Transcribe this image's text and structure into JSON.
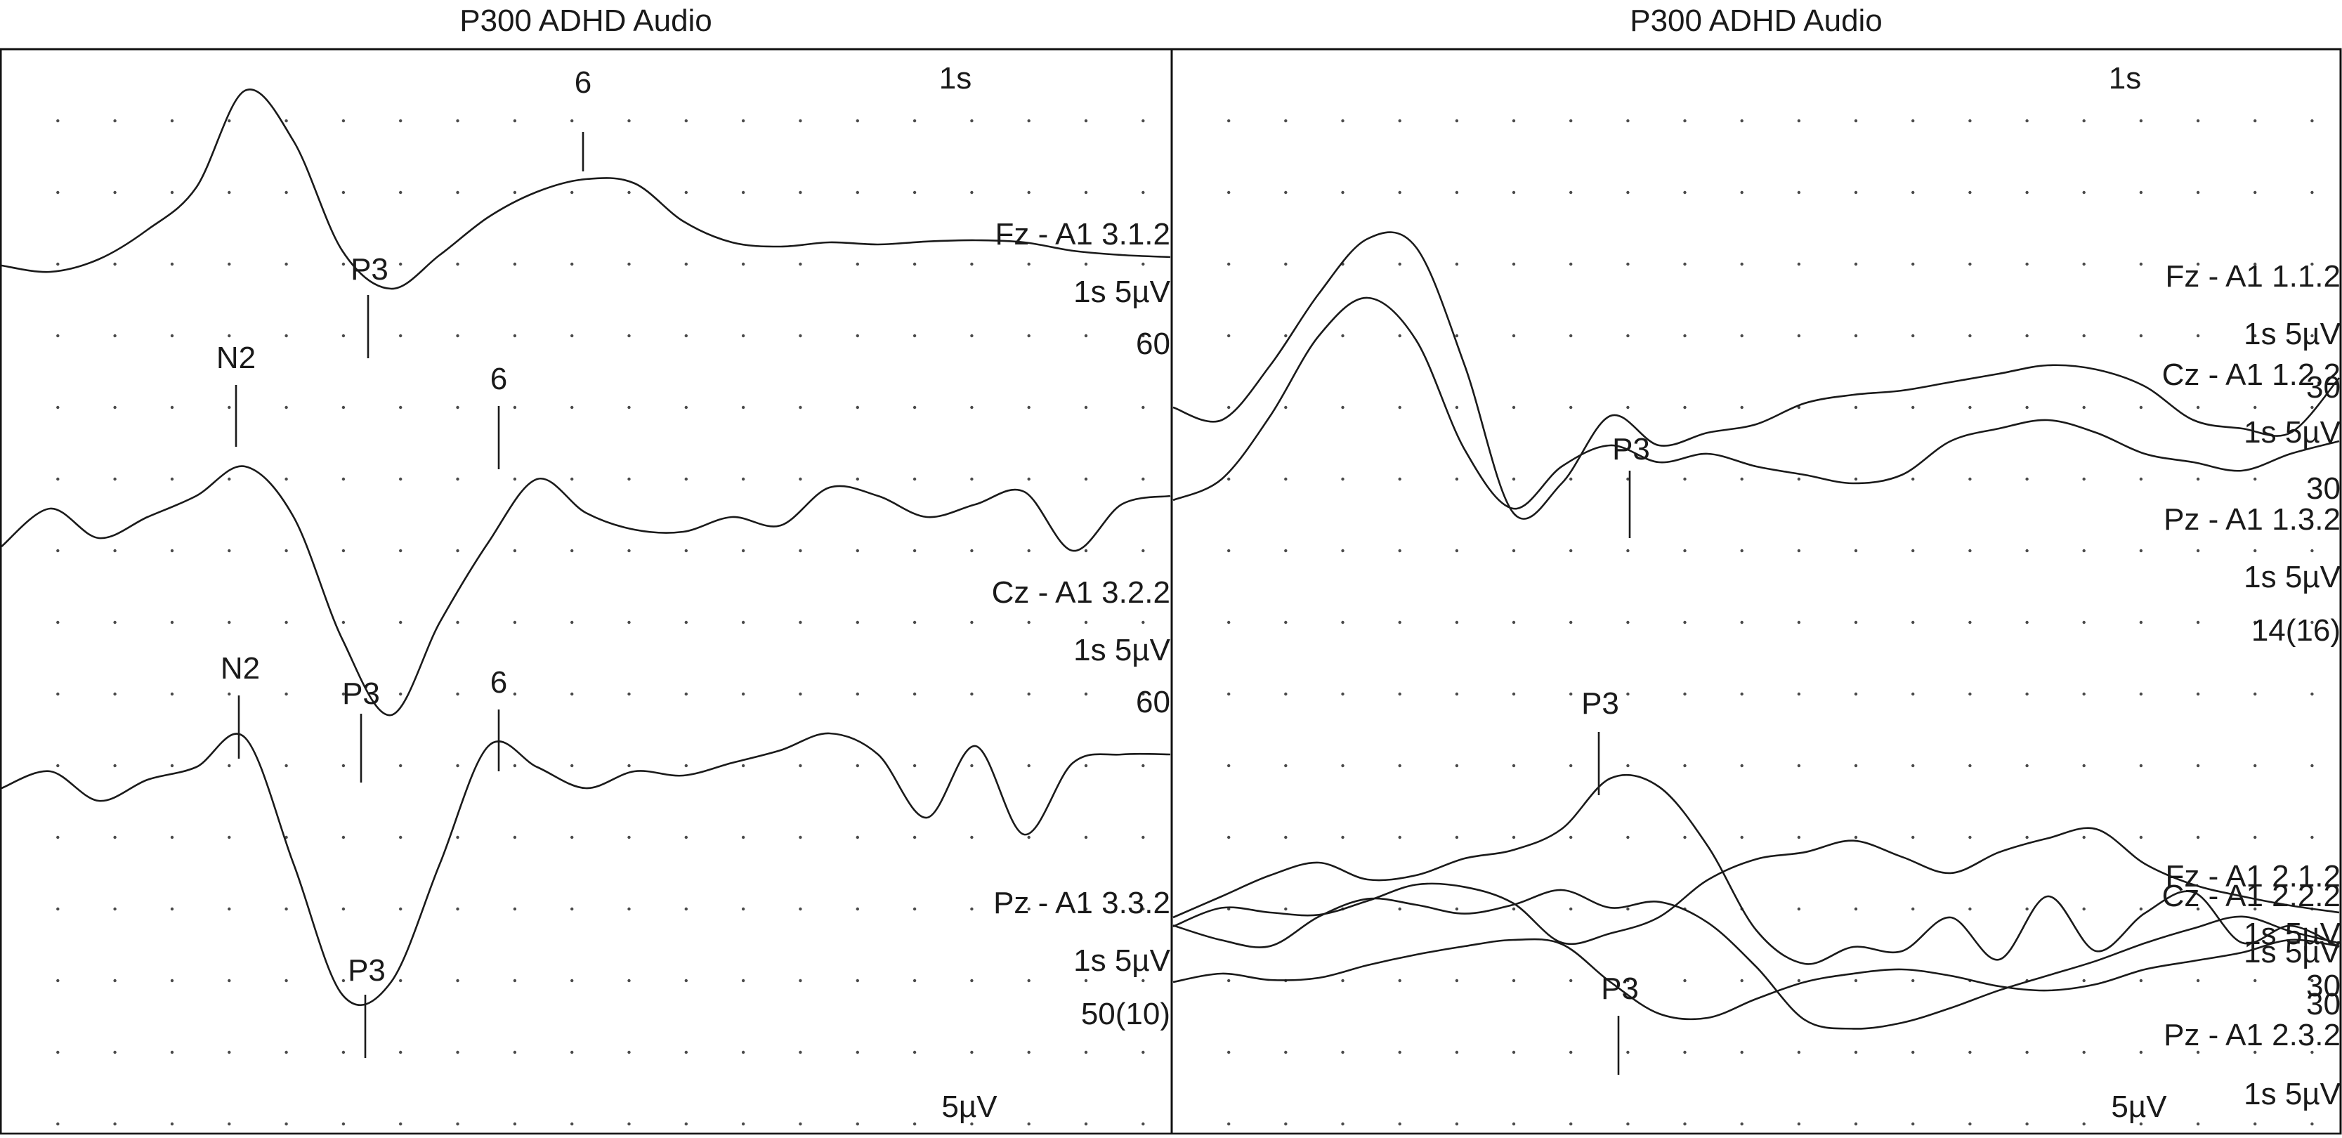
{
  "chart_data": [
    {
      "type": "line",
      "title": "P300 ADHD Audio",
      "time_scale": "1s",
      "amplitude_scale": "5µV",
      "grid": true,
      "series": [
        {
          "name": "Fz - A1  3.1.2",
          "scale": "1s 5µV",
          "count": "60",
          "peaks": [
            {
              "label": "P3"
            },
            {
              "label": "6"
            }
          ],
          "values": [
            -0.55,
            -0.7,
            -0.4,
            0.3,
            1.3,
            3.6,
            2.4,
            -0.2,
            -1.1,
            -0.3,
            0.6,
            1.2,
            1.5,
            1.4,
            0.5,
            0.0,
            -0.1,
            0.0,
            -0.05,
            0.02,
            0.05,
            0.0,
            -0.2,
            -0.3,
            -0.35
          ]
        },
        {
          "name": "Cz - A1  3.2.2",
          "scale": "1s 5µV",
          "count": "60",
          "peaks": [
            {
              "label": "N2"
            },
            {
              "label": "P3"
            },
            {
              "label": "6"
            }
          ],
          "values": [
            0.2,
            1.1,
            0.4,
            0.9,
            1.4,
            2.1,
            0.9,
            -2.0,
            -3.8,
            -1.6,
            0.3,
            1.8,
            1.0,
            0.6,
            0.55,
            0.9,
            0.7,
            1.6,
            1.4,
            0.9,
            1.2,
            1.5,
            0.1,
            1.2,
            1.4
          ]
        },
        {
          "name": "Pz - A1  3.3.2",
          "scale": "1s 5µV",
          "count": "50(10)",
          "peaks": [
            {
              "label": "N2"
            },
            {
              "label": "P3"
            },
            {
              "label": "6"
            }
          ],
          "values": [
            1.3,
            1.7,
            1.0,
            1.5,
            1.8,
            2.5,
            -0.5,
            -3.6,
            -3.3,
            -0.5,
            2.3,
            1.8,
            1.3,
            1.7,
            1.6,
            1.9,
            2.2,
            2.6,
            2.1,
            0.6,
            2.3,
            0.2,
            1.9,
            2.1,
            2.1
          ]
        }
      ]
    },
    {
      "type": "line",
      "title": "P300 ADHD Audio",
      "time_scale": "1s",
      "amplitude_scale": "5µV",
      "grid": true,
      "groups": [
        {
          "footer": "14(16)",
          "series": [
            {
              "name": "Fz - A1  1.1.2",
              "scale": "1s 5µV",
              "count": "",
              "peaks": [
                {
                  "label": "P3"
                }
              ],
              "values": [
                2.0,
                1.7,
                3.0,
                4.7,
                6.0,
                5.8,
                3.0,
                -0.5,
                0.2,
                1.8,
                1.1,
                1.4,
                1.6,
                2.1,
                2.3,
                2.4,
                2.6,
                2.8,
                3.0,
                2.9,
                2.5,
                1.7,
                1.5,
                1.4,
                2.7
              ]
            },
            {
              "name": "Cz - A1  1.2.2",
              "scale": "1s 5µV",
              "count": "30",
              "peaks": [],
              "values": [
                -0.2,
                0.3,
                1.8,
                3.7,
                4.6,
                3.6,
                1.0,
                -0.4,
                0.6,
                1.1,
                0.7,
                0.9,
                0.6,
                0.4,
                0.2,
                0.4,
                1.2,
                1.5,
                1.7,
                1.4,
                0.9,
                0.7,
                0.5,
                0.9,
                1.2
              ]
            },
            {
              "name": "Pz - A1  1.3.2",
              "scale": "1s 5µV",
              "count": "30",
              "peaks": [],
              "values": [
                -3.6,
                -2.8,
                -3.0,
                -3.1,
                -2.5,
                -1.8,
                -1.9,
                -2.6,
                -4.3,
                -3.9,
                -3.2,
                -1.6,
                -0.7,
                -0.4,
                0.1,
                -0.6,
                -1.3,
                -0.4,
                0.2,
                0.6,
                -0.9,
                -1.8,
                -2.3,
                -2.7,
                -3.0
              ]
            }
          ]
        },
        {
          "footer": "",
          "series": [
            {
              "name": "Fz - A1  2.1.2",
              "scale": "1s 5µV",
              "count": "30",
              "peaks": [
                {
                  "label": "P3"
                }
              ],
              "values": [
                -0.1,
                0.4,
                0.9,
                1.2,
                0.8,
                0.9,
                1.3,
                1.5,
                2.0,
                3.2,
                3.0,
                1.6,
                -0.4,
                -1.2,
                -0.8,
                -0.9,
                -0.1,
                -1.1,
                0.4,
                -0.9,
                0.0,
                0.5,
                -0.7,
                -0.3,
                -0.8
              ]
            },
            {
              "name": "Cz - A1  2.2.2",
              "scale": "1s 5µV",
              "count": "30",
              "peaks": [],
              "values": [
                0.3,
                -0.2,
                -0.4,
                0.6,
                1.2,
                1.0,
                0.7,
                1.0,
                1.5,
                0.9,
                1.1,
                0.4,
                -1.1,
                -2.9,
                -3.2,
                -3.0,
                -2.5,
                -1.9,
                -1.4,
                -0.9,
                -0.3,
                0.2,
                0.6,
                0.1,
                -0.3
              ]
            },
            {
              "name": "Pz - A1  2.3.2",
              "scale": "1s 5µV",
              "count": "",
              "peaks": [
                {
                  "label": "P3"
                }
              ],
              "values": [
                -1.6,
                -1.2,
                -1.5,
                -1.4,
                -0.8,
                -0.3,
                0.1,
                0.4,
                0.2,
                -1.6,
                -3.1,
                -3.3,
                -2.4,
                -1.6,
                -1.2,
                -1.0,
                -1.3,
                -1.8,
                -2.0,
                -1.7,
                -1.0,
                -0.6,
                -0.2,
                0.4,
                0.1
              ]
            }
          ]
        }
      ]
    }
  ],
  "colors": {
    "trace": "#1a1a1a",
    "grid_dot": "#4a4a4a",
    "frame": "#111111",
    "background": "#ffffff"
  }
}
